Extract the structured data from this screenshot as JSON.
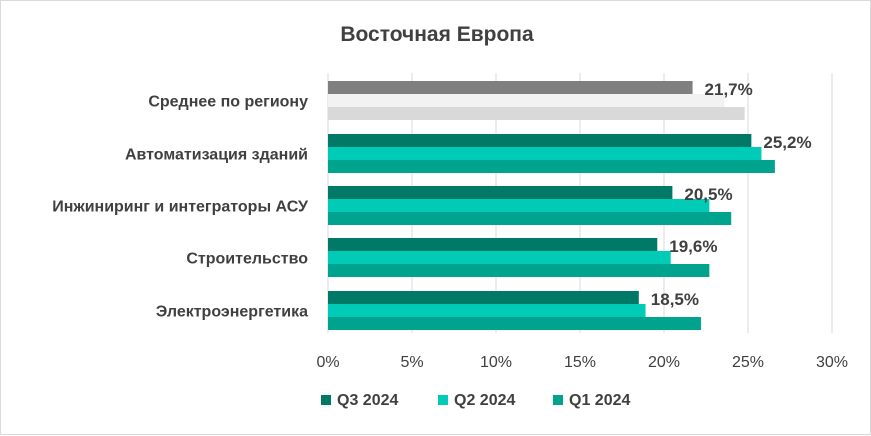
{
  "chart_data": {
    "type": "bar",
    "orientation": "horizontal",
    "title": "Восточная Европа",
    "categories": [
      "Среднее по региону",
      "Автоматизация зданий",
      "Инжиниринг и интеграторы АСУ",
      "Строительство",
      "Электроэнергетика"
    ],
    "series": [
      {
        "name": "Q3 2024",
        "color": "#007A66",
        "values": [
          21.7,
          25.2,
          20.5,
          19.6,
          18.5
        ]
      },
      {
        "name": "Q2 2024",
        "color": "#00CBB6",
        "values": [
          23.6,
          25.8,
          22.7,
          20.4,
          18.9
        ]
      },
      {
        "name": "Q1 2024",
        "color": "#00A38D",
        "values": [
          24.8,
          26.6,
          24.0,
          22.7,
          22.2
        ]
      }
    ],
    "average_row_colors": [
      "#7F7F7F",
      "#F2F2F2",
      "#D9D9D9"
    ],
    "data_labels": [
      "21,7%",
      "25,2%",
      "20,5%",
      "19,6%",
      "18,5%"
    ],
    "xlim": [
      0,
      30
    ],
    "x_ticks": [
      "0%",
      "5%",
      "10%",
      "15%",
      "20%",
      "25%",
      "30%"
    ],
    "grid": true,
    "legend_position": "bottom"
  }
}
